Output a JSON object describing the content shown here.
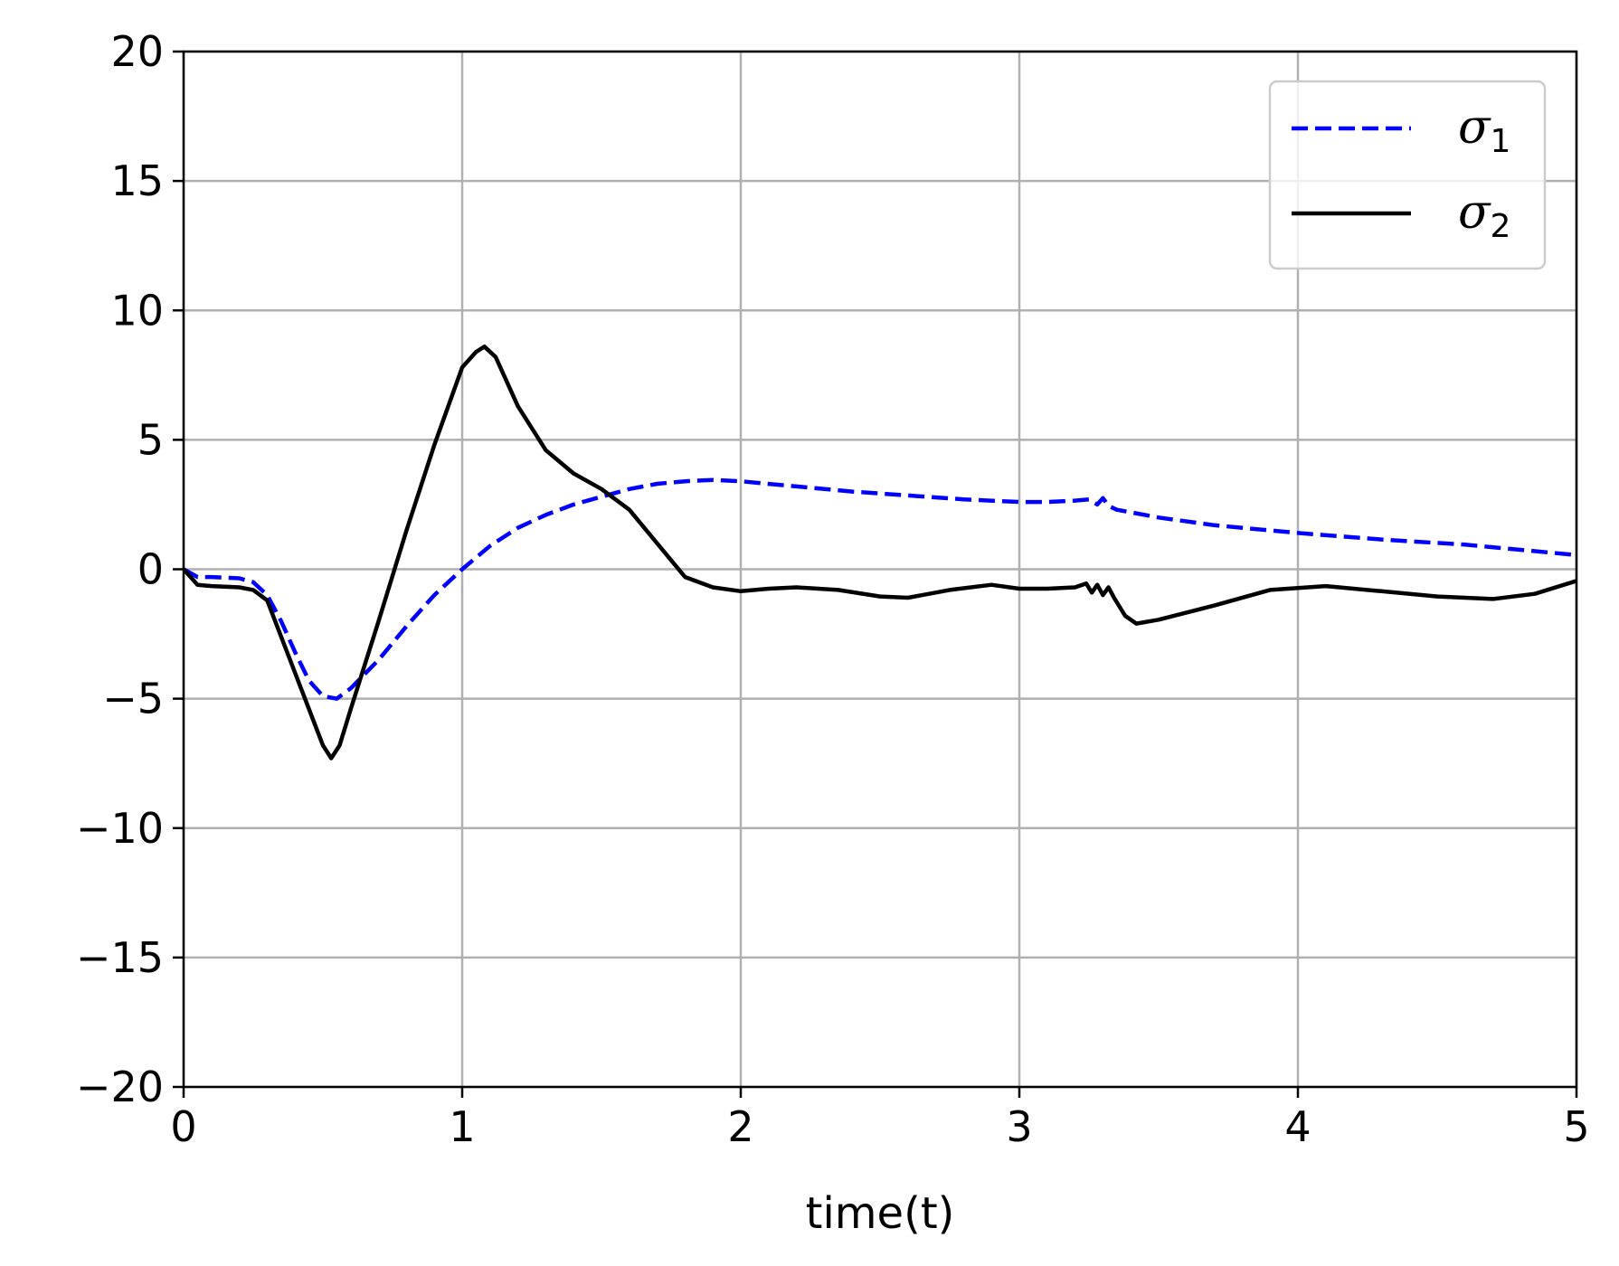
{
  "chart_data": {
    "type": "line",
    "xlabel": "time(t)",
    "ylabel": "",
    "xlim": [
      0,
      5
    ],
    "ylim": [
      -20,
      20
    ],
    "xticks": [
      "0",
      "1",
      "2",
      "3",
      "4",
      "5"
    ],
    "yticks": [
      "20",
      "15",
      "10",
      "5",
      "0",
      "−5",
      "−10",
      "−15",
      "−20"
    ],
    "grid": true,
    "legend_position": "top-right",
    "series": [
      {
        "name": "σ",
        "name_subscript": "1",
        "color": "#0000ff",
        "style": "dashed",
        "x": [
          0,
          0.05,
          0.1,
          0.2,
          0.25,
          0.3,
          0.35,
          0.4,
          0.45,
          0.5,
          0.55,
          0.6,
          0.7,
          0.8,
          0.9,
          1.0,
          1.1,
          1.2,
          1.3,
          1.4,
          1.5,
          1.6,
          1.7,
          1.8,
          1.9,
          2.0,
          2.2,
          2.4,
          2.6,
          2.8,
          3.0,
          3.1,
          3.2,
          3.25,
          3.28,
          3.3,
          3.32,
          3.35,
          3.5,
          3.7,
          4.0,
          4.3,
          4.6,
          5.0
        ],
        "y": [
          0,
          -0.3,
          -0.3,
          -0.35,
          -0.5,
          -1.0,
          -2.0,
          -3.2,
          -4.3,
          -4.9,
          -5.0,
          -4.6,
          -3.5,
          -2.2,
          -1.0,
          0.0,
          0.9,
          1.6,
          2.1,
          2.5,
          2.8,
          3.1,
          3.3,
          3.4,
          3.45,
          3.4,
          3.2,
          3.0,
          2.85,
          2.7,
          2.6,
          2.6,
          2.65,
          2.7,
          2.5,
          2.75,
          2.45,
          2.3,
          2.0,
          1.7,
          1.4,
          1.15,
          0.95,
          0.55
        ]
      },
      {
        "name": "σ",
        "name_subscript": "2",
        "color": "#000000",
        "style": "solid",
        "x": [
          0,
          0.05,
          0.1,
          0.2,
          0.25,
          0.3,
          0.4,
          0.5,
          0.53,
          0.56,
          0.6,
          0.7,
          0.8,
          0.9,
          1.0,
          1.05,
          1.08,
          1.12,
          1.2,
          1.3,
          1.4,
          1.5,
          1.6,
          1.7,
          1.8,
          1.9,
          2.0,
          2.1,
          2.2,
          2.35,
          2.5,
          2.6,
          2.75,
          2.9,
          3.0,
          3.1,
          3.2,
          3.24,
          3.26,
          3.28,
          3.3,
          3.32,
          3.34,
          3.38,
          3.42,
          3.5,
          3.7,
          3.9,
          4.1,
          4.3,
          4.5,
          4.7,
          4.85,
          5.0
        ],
        "y": [
          0,
          -0.6,
          -0.65,
          -0.7,
          -0.8,
          -1.2,
          -4.0,
          -6.8,
          -7.3,
          -6.8,
          -5.4,
          -2.0,
          1.5,
          4.8,
          7.8,
          8.4,
          8.6,
          8.2,
          6.3,
          4.6,
          3.7,
          3.1,
          2.3,
          1.0,
          -0.3,
          -0.7,
          -0.85,
          -0.75,
          -0.7,
          -0.8,
          -1.05,
          -1.1,
          -0.8,
          -0.6,
          -0.75,
          -0.75,
          -0.7,
          -0.55,
          -0.9,
          -0.6,
          -1.0,
          -0.7,
          -1.1,
          -1.8,
          -2.1,
          -1.95,
          -1.4,
          -0.8,
          -0.65,
          -0.85,
          -1.05,
          -1.15,
          -0.95,
          -0.45
        ]
      }
    ]
  }
}
